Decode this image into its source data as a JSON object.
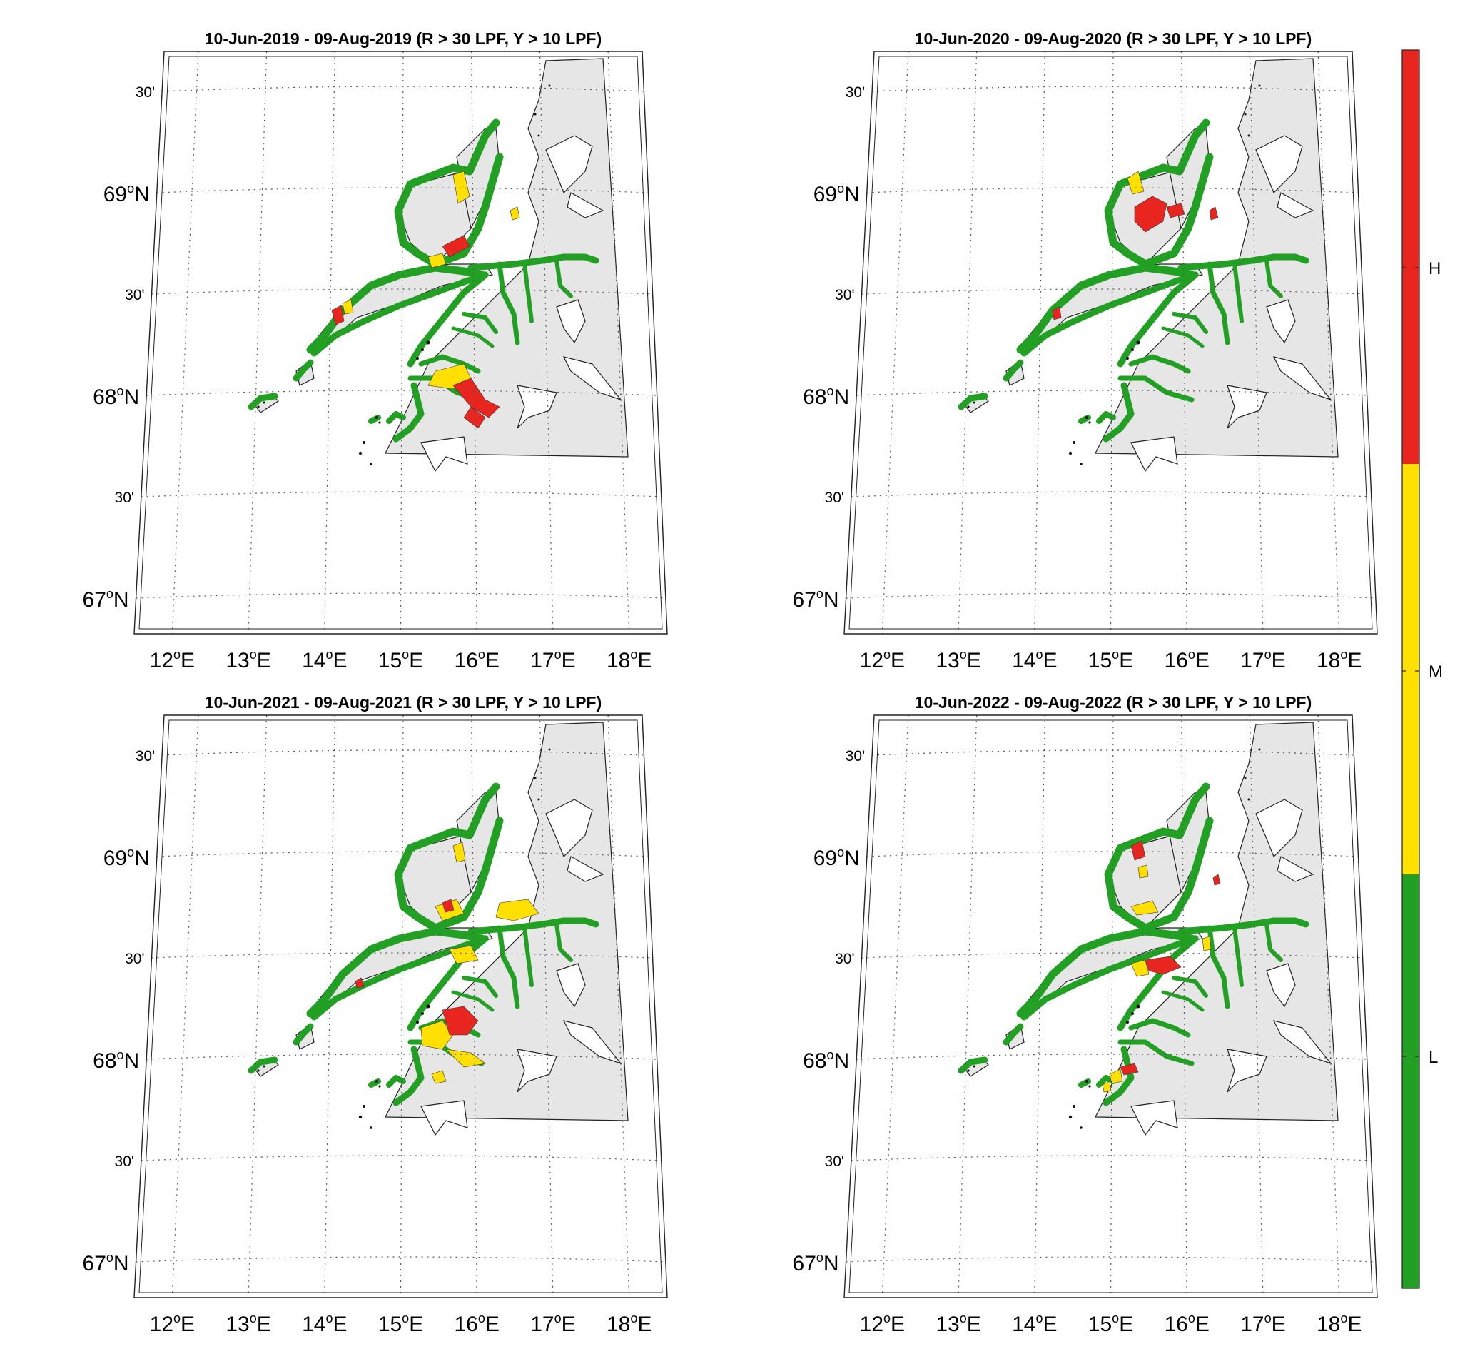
{
  "figure": {
    "panels": [
      {
        "title": "10-Jun-2019  - 09-Aug-2019  (R > 30 LPF, Y > 10 LPF)",
        "year": "2019"
      },
      {
        "title": "10-Jun-2020  - 09-Aug-2020  (R > 30 LPF, Y > 10 LPF)",
        "year": "2020"
      },
      {
        "title": "10-Jun-2021  - 09-Aug-2021  (R > 30 LPF, Y > 10 LPF)",
        "year": "2021"
      },
      {
        "title": "10-Jun-2022  - 09-Aug-2022  (R > 30 LPF, Y > 10 LPF)",
        "year": "2022"
      }
    ],
    "lon_labels": [
      {
        "deg": "12",
        "suffix": "E"
      },
      {
        "deg": "13",
        "suffix": "E"
      },
      {
        "deg": "14",
        "suffix": "E"
      },
      {
        "deg": "15",
        "suffix": "E"
      },
      {
        "deg": "16",
        "suffix": "E"
      },
      {
        "deg": "17",
        "suffix": "E"
      },
      {
        "deg": "18",
        "suffix": "E"
      }
    ],
    "lat_labels": [
      {
        "text": "30'",
        "kind": "minute"
      },
      {
        "deg": "69",
        "suffix": "N",
        "kind": "degree"
      },
      {
        "text": "30'",
        "kind": "minute"
      },
      {
        "deg": "68",
        "suffix": "N",
        "kind": "degree"
      },
      {
        "text": "30'",
        "kind": "minute"
      },
      {
        "deg": "67",
        "suffix": "N",
        "kind": "degree"
      }
    ],
    "degree_symbol": "o",
    "colorbar": {
      "levels": [
        {
          "label": "H",
          "color": "#e8261f"
        },
        {
          "label": "M",
          "color": "#ffe000"
        },
        {
          "label": "L",
          "color": "#22a023"
        }
      ]
    },
    "colors": {
      "land": "#e6e6e6",
      "sea": "#ffffff",
      "coast_zone": "#22a023",
      "risk_high": "#e8261f",
      "risk_medium": "#ffe000",
      "risk_low": "#22a023"
    }
  }
}
